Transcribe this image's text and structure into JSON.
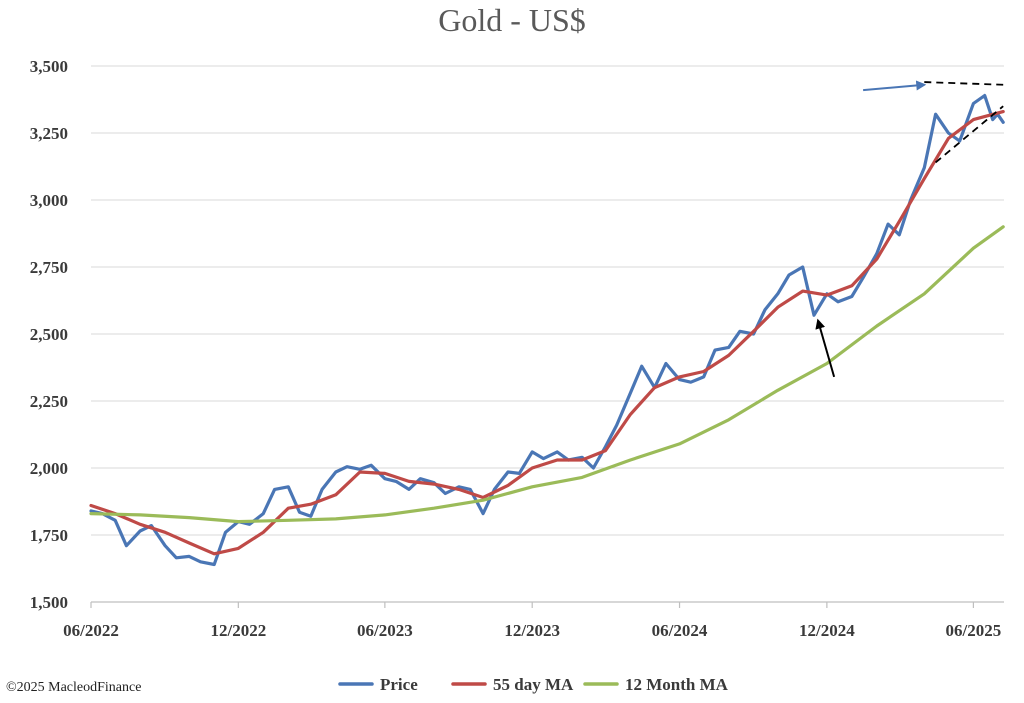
{
  "chart_data": {
    "type": "line",
    "title": "Gold - US$",
    "xlabel": "",
    "ylabel": "",
    "ylim": [
      1500,
      3500
    ],
    "yticks": [
      1500,
      1750,
      2000,
      2250,
      2500,
      2750,
      3000,
      3250,
      3500
    ],
    "yticklabels": [
      "1,500",
      "1,750",
      "2,000",
      "2,250",
      "2,500",
      "2,750",
      "3,000",
      "3,250",
      "3,500"
    ],
    "xlim": [
      "2022-06",
      "2025-07"
    ],
    "xticks": [
      "2022-06",
      "2022-12",
      "2023-06",
      "2023-12",
      "2024-06",
      "2024-12",
      "2025-06"
    ],
    "xticklabels": [
      "06/2022",
      "12/2022",
      "06/2023",
      "12/2023",
      "06/2024",
      "12/2024",
      "06/2025"
    ],
    "grid": "horizontal",
    "legend": "bottom",
    "series": [
      {
        "name": "Price",
        "color": "#4a76b5",
        "points": [
          [
            "2022-06-01",
            1840
          ],
          [
            "2022-06-15",
            1830
          ],
          [
            "2022-07-01",
            1805
          ],
          [
            "2022-07-15",
            1710
          ],
          [
            "2022-08-01",
            1765
          ],
          [
            "2022-08-15",
            1785
          ],
          [
            "2022-09-01",
            1710
          ],
          [
            "2022-09-15",
            1665
          ],
          [
            "2022-10-01",
            1670
          ],
          [
            "2022-10-15",
            1650
          ],
          [
            "2022-11-01",
            1640
          ],
          [
            "2022-11-15",
            1760
          ],
          [
            "2022-12-01",
            1800
          ],
          [
            "2022-12-15",
            1790
          ],
          [
            "2023-01-01",
            1830
          ],
          [
            "2023-01-15",
            1920
          ],
          [
            "2023-02-01",
            1930
          ],
          [
            "2023-02-15",
            1835
          ],
          [
            "2023-03-01",
            1820
          ],
          [
            "2023-03-15",
            1920
          ],
          [
            "2023-04-01",
            1985
          ],
          [
            "2023-04-15",
            2005
          ],
          [
            "2023-05-01",
            1995
          ],
          [
            "2023-05-15",
            2010
          ],
          [
            "2023-06-01",
            1960
          ],
          [
            "2023-06-15",
            1950
          ],
          [
            "2023-07-01",
            1920
          ],
          [
            "2023-07-15",
            1960
          ],
          [
            "2023-08-01",
            1945
          ],
          [
            "2023-08-15",
            1905
          ],
          [
            "2023-09-01",
            1930
          ],
          [
            "2023-09-15",
            1920
          ],
          [
            "2023-10-01",
            1830
          ],
          [
            "2023-10-15",
            1920
          ],
          [
            "2023-11-01",
            1985
          ],
          [
            "2023-11-15",
            1980
          ],
          [
            "2023-12-01",
            2060
          ],
          [
            "2023-12-15",
            2035
          ],
          [
            "2024-01-01",
            2060
          ],
          [
            "2024-01-15",
            2030
          ],
          [
            "2024-02-01",
            2040
          ],
          [
            "2024-02-15",
            2000
          ],
          [
            "2024-03-01",
            2080
          ],
          [
            "2024-03-15",
            2160
          ],
          [
            "2024-04-01",
            2280
          ],
          [
            "2024-04-15",
            2380
          ],
          [
            "2024-05-01",
            2300
          ],
          [
            "2024-05-15",
            2390
          ],
          [
            "2024-06-01",
            2330
          ],
          [
            "2024-06-15",
            2320
          ],
          [
            "2024-07-01",
            2340
          ],
          [
            "2024-07-15",
            2440
          ],
          [
            "2024-08-01",
            2450
          ],
          [
            "2024-08-15",
            2510
          ],
          [
            "2024-09-01",
            2500
          ],
          [
            "2024-09-15",
            2590
          ],
          [
            "2024-10-01",
            2650
          ],
          [
            "2024-10-15",
            2720
          ],
          [
            "2024-11-01",
            2750
          ],
          [
            "2024-11-15",
            2570
          ],
          [
            "2024-12-01",
            2650
          ],
          [
            "2024-12-15",
            2620
          ],
          [
            "2025-01-01",
            2640
          ],
          [
            "2025-01-15",
            2710
          ],
          [
            "2025-02-01",
            2800
          ],
          [
            "2025-02-15",
            2910
          ],
          [
            "2025-03-01",
            2870
          ],
          [
            "2025-03-15",
            3000
          ],
          [
            "2025-04-01",
            3120
          ],
          [
            "2025-04-15",
            3320
          ],
          [
            "2025-05-01",
            3250
          ],
          [
            "2025-05-15",
            3220
          ],
          [
            "2025-06-01",
            3360
          ],
          [
            "2025-06-15",
            3390
          ],
          [
            "2025-06-25",
            3300
          ],
          [
            "2025-07-01",
            3320
          ],
          [
            "2025-07-08",
            3290
          ]
        ]
      },
      {
        "name": "55 day MA",
        "color": "#bf4a47",
        "points": [
          [
            "2022-06-01",
            1860
          ],
          [
            "2022-07-01",
            1830
          ],
          [
            "2022-08-01",
            1790
          ],
          [
            "2022-09-01",
            1760
          ],
          [
            "2022-10-01",
            1720
          ],
          [
            "2022-11-01",
            1680
          ],
          [
            "2022-12-01",
            1700
          ],
          [
            "2023-01-01",
            1760
          ],
          [
            "2023-02-01",
            1850
          ],
          [
            "2023-03-01",
            1865
          ],
          [
            "2023-04-01",
            1900
          ],
          [
            "2023-05-01",
            1985
          ],
          [
            "2023-06-01",
            1980
          ],
          [
            "2023-07-01",
            1950
          ],
          [
            "2023-08-01",
            1940
          ],
          [
            "2023-09-01",
            1920
          ],
          [
            "2023-10-01",
            1890
          ],
          [
            "2023-11-01",
            1935
          ],
          [
            "2023-12-01",
            2000
          ],
          [
            "2024-01-01",
            2030
          ],
          [
            "2024-02-01",
            2030
          ],
          [
            "2024-03-01",
            2065
          ],
          [
            "2024-04-01",
            2200
          ],
          [
            "2024-05-01",
            2300
          ],
          [
            "2024-06-01",
            2340
          ],
          [
            "2024-07-01",
            2360
          ],
          [
            "2024-08-01",
            2420
          ],
          [
            "2024-09-01",
            2510
          ],
          [
            "2024-10-01",
            2600
          ],
          [
            "2024-11-01",
            2660
          ],
          [
            "2024-12-01",
            2645
          ],
          [
            "2025-01-01",
            2680
          ],
          [
            "2025-02-01",
            2780
          ],
          [
            "2025-03-01",
            2920
          ],
          [
            "2025-04-01",
            3080
          ],
          [
            "2025-05-01",
            3230
          ],
          [
            "2025-06-01",
            3300
          ],
          [
            "2025-07-08",
            3330
          ]
        ]
      },
      {
        "name": "12 Month MA",
        "color": "#9bbb59",
        "points": [
          [
            "2022-06-01",
            1830
          ],
          [
            "2022-08-01",
            1825
          ],
          [
            "2022-10-01",
            1815
          ],
          [
            "2022-12-01",
            1800
          ],
          [
            "2023-02-01",
            1805
          ],
          [
            "2023-04-01",
            1810
          ],
          [
            "2023-06-01",
            1825
          ],
          [
            "2023-08-01",
            1850
          ],
          [
            "2023-10-01",
            1880
          ],
          [
            "2023-12-01",
            1930
          ],
          [
            "2024-02-01",
            1965
          ],
          [
            "2024-04-01",
            2030
          ],
          [
            "2024-06-01",
            2090
          ],
          [
            "2024-08-01",
            2180
          ],
          [
            "2024-10-01",
            2290
          ],
          [
            "2024-12-01",
            2390
          ],
          [
            "2025-02-01",
            2530
          ],
          [
            "2025-04-01",
            2650
          ],
          [
            "2025-06-01",
            2820
          ],
          [
            "2025-07-08",
            2900
          ]
        ]
      }
    ],
    "annotations": [
      {
        "type": "arrow",
        "name": "blue-arrow",
        "color": "#4a76b5",
        "from": [
          "2025-01-15",
          3410
        ],
        "to": [
          "2025-04-01",
          3430
        ]
      },
      {
        "type": "arrow",
        "name": "black-arrow",
        "color": "#000000",
        "from": [
          "2024-12-10",
          2340
        ],
        "to": [
          "2024-11-20",
          2550
        ]
      },
      {
        "type": "dashed-line",
        "name": "resistance-line",
        "color": "#000000",
        "from": [
          "2025-04-01",
          3440
        ],
        "to": [
          "2025-07-08",
          3430
        ]
      },
      {
        "type": "dashed-line",
        "name": "support-line",
        "color": "#000000",
        "from": [
          "2025-04-15",
          3140
        ],
        "to": [
          "2025-07-08",
          3350
        ]
      }
    ]
  },
  "footer": {
    "copyright": "©2025 MacleodFinance"
  }
}
